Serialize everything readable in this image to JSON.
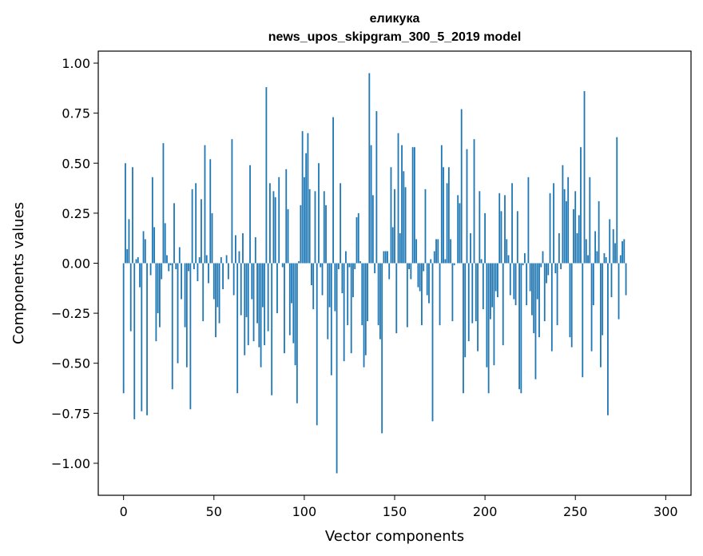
{
  "chart_data": {
    "type": "bar",
    "title": "еликука",
    "subtitle": "news_upos_skipgram_300_5_2019 model",
    "xlabel": "Vector components",
    "ylabel": "Components values",
    "xlim": [
      -14,
      314
    ],
    "ylim": [
      -1.16,
      1.06
    ],
    "xticks": [
      0,
      50,
      100,
      150,
      200,
      250,
      300
    ],
    "yticks": [
      -1.0,
      -0.75,
      -0.5,
      -0.25,
      0.0,
      0.25,
      0.5,
      0.75,
      1.0
    ],
    "xtick_labels": [
      "0",
      "50",
      "100",
      "150",
      "200",
      "250",
      "300"
    ],
    "ytick_labels": [
      "−1.00",
      "−0.75",
      "−0.50",
      "−0.25",
      "0.00",
      "0.25",
      "0.50",
      "0.75",
      "1.00"
    ],
    "bar_color": "#1f77b4",
    "grid": false,
    "values": [
      -0.65,
      0.5,
      0.07,
      0.22,
      -0.34,
      0.48,
      -0.78,
      0.02,
      0.03,
      -0.12,
      -0.74,
      0.16,
      0.12,
      -0.76,
      0.0,
      -0.06,
      0.43,
      0.18,
      -0.39,
      -0.25,
      -0.32,
      -0.08,
      0.6,
      0.2,
      0.04,
      -0.04,
      -0.01,
      -0.63,
      0.3,
      -0.03,
      -0.5,
      0.08,
      -0.18,
      0.0,
      -0.32,
      -0.52,
      -0.04,
      -0.73,
      0.37,
      -0.03,
      0.4,
      -0.09,
      0.03,
      0.32,
      -0.29,
      0.59,
      0.04,
      -0.1,
      0.52,
      0.25,
      -0.18,
      -0.37,
      -0.22,
      -0.3,
      0.03,
      -0.13,
      0.0,
      0.04,
      -0.08,
      0.0,
      0.62,
      -0.16,
      0.14,
      -0.65,
      0.06,
      -0.26,
      0.15,
      -0.46,
      -0.27,
      -0.41,
      0.49,
      -0.18,
      -0.39,
      0.13,
      -0.3,
      -0.42,
      -0.52,
      -0.22,
      -0.41,
      0.88,
      -0.34,
      0.4,
      -0.66,
      0.36,
      0.33,
      -0.25,
      0.43,
      0.0,
      -0.02,
      -0.45,
      0.47,
      0.27,
      -0.36,
      -0.2,
      -0.4,
      -0.51,
      -0.7,
      0.01,
      0.29,
      0.66,
      0.43,
      0.55,
      0.65,
      0.37,
      -0.11,
      -0.23,
      0.36,
      -0.81,
      0.5,
      -0.02,
      -0.16,
      0.36,
      0.29,
      -0.38,
      -0.22,
      -0.56,
      0.73,
      -0.24,
      -1.05,
      -0.03,
      0.4,
      -0.15,
      -0.49,
      0.06,
      -0.31,
      -0.02,
      -0.45,
      -0.17,
      -0.03,
      0.23,
      0.25,
      0.01,
      -0.31,
      -0.52,
      -0.46,
      -0.29,
      0.95,
      0.59,
      0.34,
      -0.05,
      0.76,
      -0.31,
      -0.38,
      -0.85,
      0.06,
      0.06,
      0.06,
      -0.08,
      0.48,
      0.18,
      0.37,
      -0.35,
      0.65,
      0.15,
      0.59,
      0.46,
      0.38,
      -0.32,
      -0.03,
      -0.08,
      0.58,
      0.58,
      0.12,
      -0.12,
      -0.14,
      -0.31,
      -0.04,
      0.37,
      -0.16,
      -0.2,
      0.02,
      -0.79,
      0.06,
      0.12,
      0.12,
      -0.31,
      0.59,
      0.48,
      0.02,
      0.4,
      0.48,
      0.12,
      -0.29,
      -0.01,
      0.0,
      0.34,
      0.3,
      0.77,
      -0.65,
      -0.47,
      0.57,
      -0.39,
      0.15,
      -0.3,
      0.62,
      -0.29,
      -0.44,
      0.36,
      0.02,
      -0.23,
      0.25,
      -0.52,
      -0.65,
      -0.28,
      -0.22,
      -0.51,
      -0.14,
      -0.17,
      0.35,
      0.26,
      -0.41,
      0.34,
      0.12,
      0.04,
      -0.16,
      0.4,
      -0.18,
      -0.21,
      0.26,
      -0.63,
      -0.65,
      -0.01,
      0.05,
      -0.21,
      0.43,
      -0.14,
      -0.26,
      -0.35,
      -0.58,
      -0.18,
      -0.37,
      -0.02,
      0.06,
      -0.29,
      -0.1,
      -0.06,
      0.35,
      -0.44,
      0.4,
      -0.05,
      -0.31,
      0.15,
      -0.03,
      0.49,
      0.37,
      0.31,
      0.43,
      -0.37,
      -0.42,
      0.27,
      0.36,
      0.15,
      0.24,
      0.58,
      -0.57,
      0.86,
      0.12,
      0.04,
      0.43,
      -0.44,
      -0.21,
      0.16,
      0.06,
      0.31,
      -0.52,
      -0.36,
      0.05,
      0.03,
      -0.76,
      0.22,
      -0.17,
      0.17,
      0.1,
      0.63,
      -0.28,
      0.04,
      0.11,
      0.12,
      -0.16
    ]
  }
}
